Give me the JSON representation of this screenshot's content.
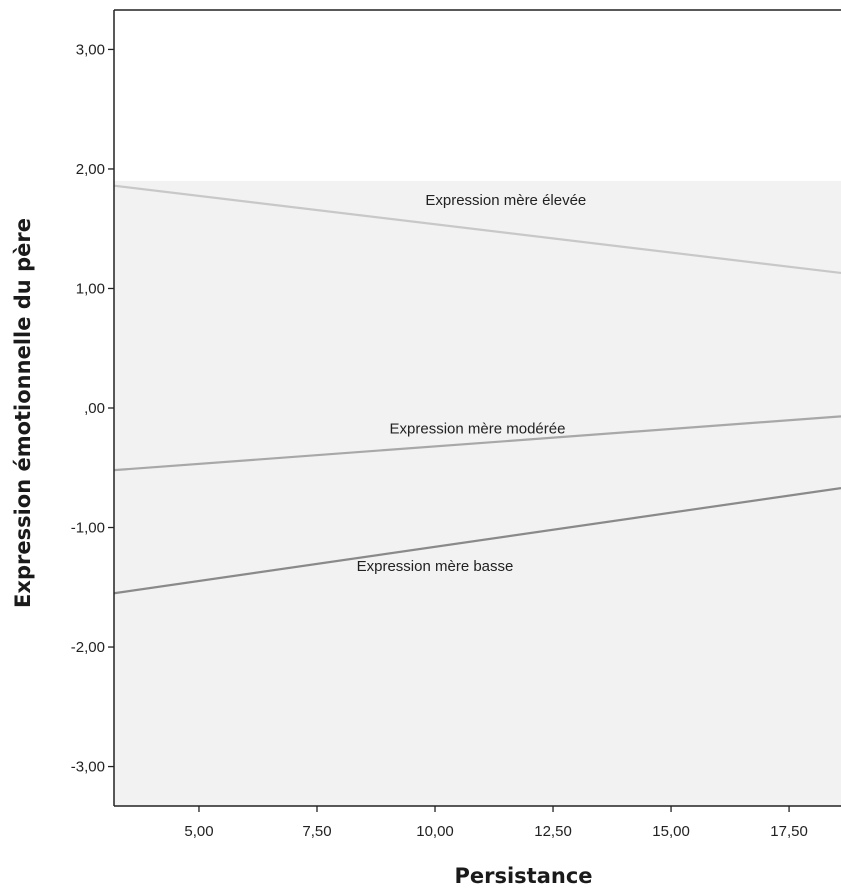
{
  "chart_data": {
    "type": "line",
    "xlabel": "Persistance",
    "ylabel": "Expression émotionnelle du père",
    "xlim": [
      3.2,
      18.6
    ],
    "ylim": [
      -3.33,
      3.33
    ],
    "x_ticks": [
      "5,00",
      "7,50",
      "10,00",
      "12,50",
      "15,00",
      "17,50"
    ],
    "x_tick_values": [
      5,
      7.5,
      10,
      12.5,
      15,
      17.5
    ],
    "y_ticks": [
      "3,00",
      "2,00",
      "1,00",
      ",00",
      "-1,00",
      "-2,00",
      "-3,00"
    ],
    "y_tick_values": [
      3,
      2,
      1,
      0,
      -1,
      -2,
      -3
    ],
    "grid": false,
    "legend": "none",
    "plot_background": "#f2f2f2",
    "plot_background_top": "#ffffff",
    "series": [
      {
        "name": "Expression mère élevée",
        "x": [
          3.2,
          18.6
        ],
        "y": [
          1.86,
          1.13
        ],
        "color": "#c8c8c8",
        "label_at": [
          11.5,
          1.74
        ]
      },
      {
        "name": "Expression mère modérée",
        "x": [
          3.2,
          18.6
        ],
        "y": [
          -0.52,
          -0.07
        ],
        "color": "#a8a8a8",
        "label_at": [
          10.9,
          -0.17
        ]
      },
      {
        "name": "Expression mère basse",
        "x": [
          3.2,
          18.6
        ],
        "y": [
          -1.55,
          -0.67
        ],
        "color": "#8a8a8a",
        "label_at": [
          10.0,
          -1.32
        ]
      }
    ]
  }
}
